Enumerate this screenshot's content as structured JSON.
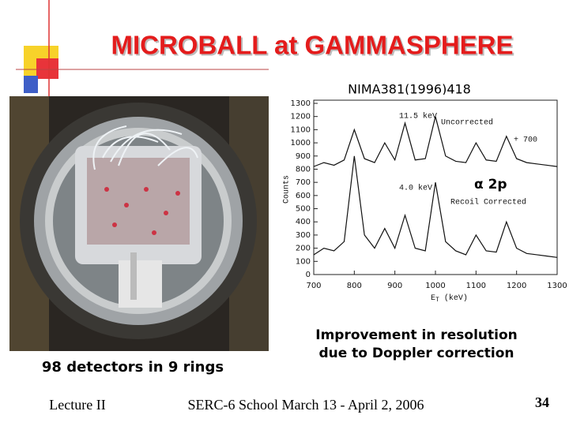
{
  "header": {
    "title": "MICROBALL at GAMMASPHERE"
  },
  "reference": "NIMA381(1996)418",
  "photo_caption": "98 detectors in 9 rings",
  "figure_caption": [
    "Improvement in resolution",
    "due to Doppler correction"
  ],
  "footer": {
    "left": "Lecture II",
    "center": "SERC-6 School March 13 - April 2, 2006",
    "page": "34"
  },
  "chart_data": {
    "type": "line",
    "ylabel": "Counts",
    "xlabel": "E",
    "xlabel_subscript": "T",
    "xlabel_unit": "(keV)",
    "annotations": [
      "11.5 keV",
      "+ 700",
      "4.0 keV",
      "α 2p"
    ],
    "x": [
      700,
      725,
      750,
      775,
      800,
      825,
      850,
      875,
      900,
      925,
      950,
      975,
      1000,
      1025,
      1050,
      1075,
      1100,
      1125,
      1150,
      1175,
      1200,
      1225,
      1250,
      1275,
      1300
    ],
    "series": [
      {
        "name": "Uncorrected",
        "color": "#111111",
        "values": [
          820,
          850,
          830,
          870,
          1100,
          880,
          850,
          1000,
          870,
          1150,
          870,
          880,
          1200,
          900,
          860,
          850,
          1000,
          870,
          860,
          1050,
          880,
          850,
          840,
          830,
          820
        ]
      },
      {
        "name": "Recoil Corrected",
        "color": "#111111",
        "values": [
          150,
          200,
          180,
          250,
          900,
          300,
          200,
          350,
          200,
          450,
          200,
          180,
          700,
          250,
          180,
          150,
          300,
          180,
          170,
          400,
          200,
          160,
          150,
          140,
          130
        ]
      }
    ],
    "xlim": [
      700,
      1300
    ],
    "ylim": [
      0,
      1300
    ],
    "xticks": [
      700,
      800,
      900,
      1000,
      1100,
      1200,
      1300
    ],
    "yticks": [
      0,
      100,
      200,
      300,
      400,
      500,
      600,
      700,
      800,
      900,
      1000,
      1100,
      1200,
      1300
    ]
  }
}
